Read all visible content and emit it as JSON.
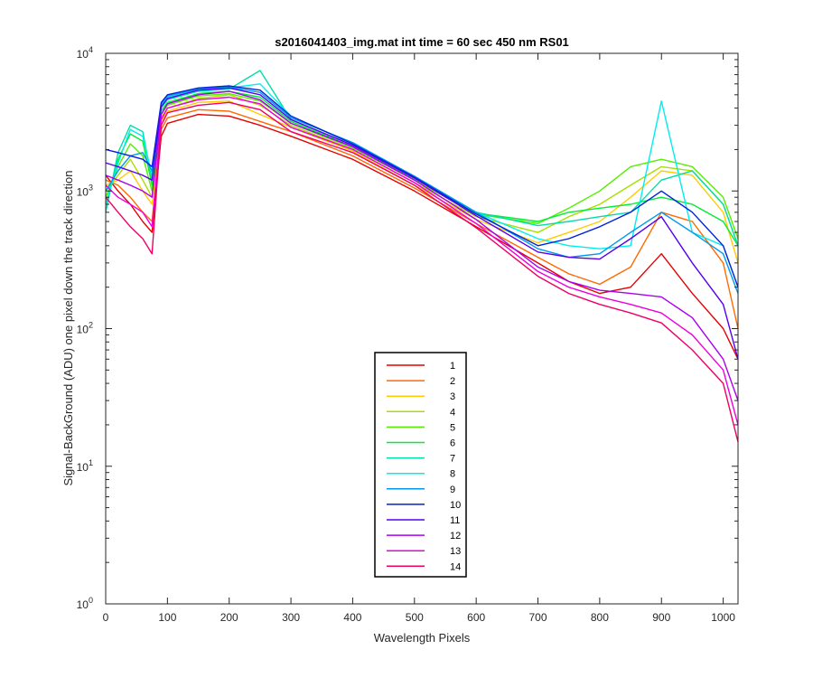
{
  "chart_data": {
    "type": "line",
    "title": "s2016041403_img.mat int time = 60 sec  450 nm RS01",
    "xlabel": "Wavelength Pixels",
    "ylabel": "Signal-BackGround (ADU) one pixel down the track direction",
    "xlim": [
      0,
      1024
    ],
    "ylim": [
      1,
      10000
    ],
    "yscale": "log",
    "xticks": [
      0,
      100,
      200,
      300,
      400,
      500,
      600,
      700,
      800,
      900,
      1000
    ],
    "yticks": [
      {
        "value": 1,
        "base": "10",
        "exp": "0"
      },
      {
        "value": 10,
        "base": "10",
        "exp": "1"
      },
      {
        "value": 100,
        "base": "10",
        "exp": "2"
      },
      {
        "value": 1000,
        "base": "10",
        "exp": "3"
      },
      {
        "value": 10000,
        "base": "10",
        "exp": "4"
      }
    ],
    "grid": false,
    "legend_position": "lower-center",
    "x": [
      0,
      20,
      40,
      60,
      75,
      90,
      100,
      150,
      200,
      250,
      300,
      400,
      500,
      600,
      700,
      750,
      800,
      850,
      900,
      950,
      1000,
      1024
    ],
    "series": [
      {
        "name": "1",
        "color": "#e60000",
        "values": [
          1300,
          1000,
          800,
          600,
          500,
          2500,
          3100,
          3600,
          3500,
          3000,
          2500,
          1700,
          1000,
          550,
          300,
          220,
          180,
          200,
          350,
          180,
          100,
          60
        ]
      },
      {
        "name": "2",
        "color": "#ff6a00",
        "values": [
          1200,
          1100,
          900,
          700,
          600,
          2800,
          3400,
          3900,
          3800,
          3200,
          2700,
          1800,
          1050,
          580,
          330,
          250,
          210,
          280,
          700,
          600,
          300,
          100
        ]
      },
      {
        "name": "3",
        "color": "#ffcc00",
        "values": [
          1100,
          1200,
          1400,
          1000,
          800,
          3200,
          3800,
          4400,
          4500,
          3600,
          2900,
          1950,
          1100,
          620,
          420,
          500,
          600,
          900,
          1400,
          1300,
          700,
          300
        ]
      },
      {
        "name": "4",
        "color": "#aadd00",
        "values": [
          1000,
          1300,
          1700,
          1200,
          900,
          3400,
          4000,
          4700,
          5000,
          4200,
          3000,
          2000,
          1150,
          650,
          500,
          650,
          800,
          1100,
          1500,
          1400,
          800,
          400
        ]
      },
      {
        "name": "5",
        "color": "#55ee00",
        "values": [
          900,
          1500,
          2200,
          1800,
          1000,
          3600,
          4200,
          4900,
          5100,
          4500,
          3100,
          2050,
          1200,
          680,
          580,
          750,
          1000,
          1500,
          1700,
          1500,
          900,
          450
        ]
      },
      {
        "name": "6",
        "color": "#00ee33",
        "values": [
          800,
          1700,
          2600,
          2300,
          1100,
          3800,
          4400,
          5100,
          5300,
          4800,
          3200,
          2100,
          1230,
          690,
          600,
          700,
          750,
          800,
          900,
          800,
          600,
          400
        ]
      },
      {
        "name": "7",
        "color": "#00ddaa",
        "values": [
          700,
          1900,
          3000,
          2700,
          1200,
          4000,
          4600,
          5300,
          5500,
          7500,
          3300,
          2150,
          1250,
          700,
          560,
          600,
          650,
          700,
          1200,
          1400,
          800,
          400
        ]
      },
      {
        "name": "8",
        "color": "#00eeee",
        "values": [
          800,
          1600,
          2800,
          2500,
          1300,
          4200,
          4800,
          5400,
          5600,
          6000,
          3500,
          2200,
          1270,
          700,
          450,
          400,
          380,
          400,
          4500,
          500,
          400,
          200
        ]
      },
      {
        "name": "9",
        "color": "#0099ee",
        "values": [
          1000,
          1400,
          1800,
          1900,
          1400,
          4300,
          4900,
          5500,
          5700,
          5200,
          3400,
          2250,
          1280,
          700,
          380,
          330,
          350,
          500,
          700,
          500,
          350,
          180
        ]
      },
      {
        "name": "10",
        "color": "#0022dd",
        "values": [
          2000,
          1900,
          1800,
          1700,
          1500,
          4400,
          5000,
          5600,
          5800,
          5400,
          3500,
          2200,
          1260,
          680,
          400,
          450,
          550,
          700,
          1000,
          700,
          400,
          200
        ]
      },
      {
        "name": "11",
        "color": "#5500ee",
        "values": [
          1600,
          1500,
          1400,
          1300,
          1200,
          4100,
          4700,
          5400,
          5600,
          5000,
          3300,
          2150,
          1240,
          660,
          360,
          330,
          320,
          450,
          650,
          300,
          150,
          60
        ]
      },
      {
        "name": "12",
        "color": "#aa00ee",
        "values": [
          1300,
          1200,
          1100,
          1000,
          900,
          3600,
          4300,
          5000,
          5300,
          4600,
          3100,
          2100,
          1200,
          620,
          280,
          220,
          190,
          180,
          170,
          120,
          60,
          30
        ]
      },
      {
        "name": "13",
        "color": "#ee00dd",
        "values": [
          1100,
          900,
          800,
          700,
          550,
          3300,
          4000,
          4600,
          4800,
          4300,
          2900,
          2000,
          1150,
          580,
          260,
          200,
          170,
          150,
          130,
          90,
          50,
          20
        ]
      },
      {
        "name": "14",
        "color": "#ee0066",
        "values": [
          900,
          700,
          550,
          450,
          350,
          3000,
          3700,
          4200,
          4400,
          3900,
          2700,
          1900,
          1100,
          540,
          240,
          180,
          150,
          130,
          110,
          70,
          40,
          15
        ]
      }
    ]
  }
}
